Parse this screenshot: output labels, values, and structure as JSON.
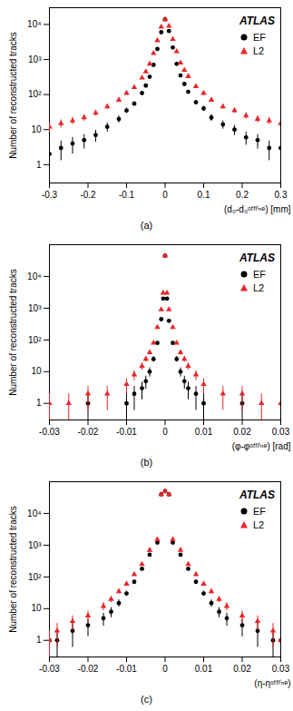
{
  "chart_data": [
    {
      "type": "scatter",
      "caption": "(a)",
      "annotation": "ATLAS",
      "x_label": "(d₀-d₀ᵒᶠᶠˡⁱⁿᵉ) [mm]",
      "y_label": "Number of reconstructed tracks",
      "log": "y",
      "legend": "top-right",
      "xlim": [
        -0.3,
        0.3
      ],
      "xticks": [
        -0.3,
        -0.2,
        -0.1,
        0,
        0.1,
        0.2,
        0.3
      ],
      "ylim": [
        0.3,
        30000
      ],
      "yticks": [
        1,
        10,
        {
          "value": 100,
          "label": "10²"
        },
        {
          "value": 1000,
          "label": "10³"
        },
        {
          "value": 10000,
          "label": "10⁴"
        }
      ],
      "x": [
        -0.3,
        -0.27,
        -0.24,
        -0.21,
        -0.18,
        -0.15,
        -0.12,
        -0.1,
        -0.08,
        -0.06,
        -0.05,
        -0.04,
        -0.03,
        -0.02,
        -0.01,
        0,
        0.01,
        0.02,
        0.03,
        0.04,
        0.05,
        0.06,
        0.08,
        0.1,
        0.12,
        0.15,
        0.18,
        0.21,
        0.24,
        0.27,
        0.3
      ],
      "series": [
        {
          "name": "EF",
          "color": "#000000",
          "marker": "circle",
          "values": [
            2,
            3,
            4,
            5,
            7,
            12,
            20,
            35,
            55,
            110,
            180,
            320,
            700,
            2000,
            6000,
            14000,
            6500,
            2200,
            750,
            350,
            200,
            120,
            60,
            40,
            22,
            14,
            10,
            6,
            5,
            3,
            3
          ],
          "errors": [
            1.4,
            1.7,
            2,
            2.2,
            2.6,
            3.5,
            4.5,
            5.9,
            7.4,
            10,
            13,
            18,
            26,
            45,
            77,
            118,
            81,
            47,
            27,
            19,
            14,
            11,
            7.7,
            6.3,
            4.7,
            3.7,
            3.2,
            2.4,
            2.2,
            1.7,
            1.7
          ]
        },
        {
          "name": "L2",
          "color": "#e8262a",
          "marker": "triangle",
          "values": [
            12,
            15,
            18,
            22,
            30,
            45,
            70,
            110,
            160,
            300,
            450,
            750,
            1500,
            3500,
            8500,
            14000,
            9000,
            3800,
            1700,
            800,
            500,
            330,
            170,
            110,
            70,
            45,
            35,
            25,
            20,
            18,
            15
          ],
          "errors": [
            3.5,
            3.9,
            4.2,
            4.7,
            5.5,
            6.7,
            8.4,
            10,
            13,
            17,
            21,
            27,
            39,
            59,
            92,
            118,
            95,
            62,
            41,
            28,
            22,
            18,
            13,
            10,
            8.4,
            6.7,
            5.9,
            5,
            4.5,
            4.2,
            3.9
          ]
        }
      ]
    },
    {
      "type": "scatter",
      "caption": "(b)",
      "annotation": "ATLAS",
      "x_label": "(φ-φᵒᶠᶠˡⁱⁿᵉ) [rad]",
      "y_label": "Number of reconstructed tracks",
      "log": "y",
      "legend": "top-right",
      "xlim": [
        -0.03,
        0.03
      ],
      "xticks": [
        -0.03,
        -0.02,
        -0.01,
        0,
        0.01,
        0.02,
        0.03
      ],
      "ylim": [
        0.3,
        100000
      ],
      "yticks": [
        1,
        10,
        {
          "value": 100,
          "label": "10²"
        },
        {
          "value": 1000,
          "label": "10³"
        },
        {
          "value": 10000,
          "label": "10⁴"
        }
      ],
      "x": [
        -0.03,
        -0.025,
        -0.02,
        -0.015,
        -0.01,
        -0.008,
        -0.006,
        -0.005,
        -0.004,
        -0.003,
        -0.002,
        -0.001,
        -0.0005,
        0,
        0.0005,
        0.001,
        0.002,
        0.003,
        0.004,
        0.005,
        0.006,
        0.008,
        0.01,
        0.015,
        0.02,
        0.025,
        0.03
      ],
      "series": [
        {
          "name": "EF",
          "color": "#000000",
          "marker": "circle",
          "values": [
            null,
            null,
            1,
            null,
            1,
            2,
            3,
            5,
            10,
            25,
            80,
            450,
            2000,
            45000,
            2000,
            400,
            80,
            25,
            10,
            5,
            3,
            2,
            1,
            null,
            1,
            null,
            null
          ],
          "errors": [
            null,
            null,
            1,
            null,
            1,
            1.4,
            1.7,
            2.2,
            3.2,
            5,
            8.9,
            21,
            45,
            212,
            45,
            20,
            8.9,
            5,
            3.2,
            2.2,
            1.7,
            1.4,
            1,
            null,
            1,
            null,
            null
          ]
        },
        {
          "name": "L2",
          "color": "#e8262a",
          "marker": "triangle",
          "values": [
            1,
            1,
            2,
            2,
            4,
            8,
            15,
            25,
            40,
            80,
            250,
            900,
            3000,
            45000,
            3000,
            900,
            250,
            80,
            40,
            25,
            15,
            8,
            4,
            2,
            2,
            1,
            1
          ],
          "errors": [
            1,
            1,
            1.4,
            1.4,
            2,
            2.8,
            3.9,
            5,
            6.3,
            8.9,
            16,
            30,
            55,
            212,
            55,
            30,
            16,
            8.9,
            6.3,
            5,
            3.9,
            2.8,
            2,
            1.4,
            1.4,
            1,
            1
          ]
        }
      ]
    },
    {
      "type": "scatter",
      "caption": "(c)",
      "annotation": "ATLAS",
      "x_label": "(η-ηᵒᶠᶠˡⁱⁿᵉ)",
      "y_label": "Number of reconstructed tracks",
      "log": "y",
      "legend": "top-right",
      "xlim": [
        -0.03,
        0.03
      ],
      "xticks": [
        -0.03,
        -0.02,
        -0.01,
        0,
        0.01,
        0.02,
        0.03
      ],
      "ylim": [
        0.3,
        100000
      ],
      "yticks": [
        1,
        10,
        {
          "value": 100,
          "label": "10²"
        },
        {
          "value": 1000,
          "label": "10³"
        },
        {
          "value": 10000,
          "label": "10⁴"
        }
      ],
      "x": [
        -0.03,
        -0.028,
        -0.024,
        -0.02,
        -0.016,
        -0.014,
        -0.012,
        -0.01,
        -0.008,
        -0.006,
        -0.004,
        -0.002,
        -0.001,
        0,
        0.001,
        0.002,
        0.004,
        0.006,
        0.008,
        0.01,
        0.012,
        0.014,
        0.016,
        0.02,
        0.024,
        0.028,
        0.03
      ],
      "series": [
        {
          "name": "EF",
          "color": "#000000",
          "marker": "circle",
          "values": [
            1,
            1,
            2,
            3,
            5,
            8,
            15,
            30,
            70,
            180,
            500,
            1200,
            40000,
            50000,
            40000,
            1200,
            500,
            180,
            70,
            30,
            15,
            8,
            5,
            3,
            2,
            1,
            1
          ],
          "errors": [
            1,
            1,
            1.4,
            1.7,
            2.2,
            2.8,
            3.9,
            5.5,
            8.4,
            13,
            22,
            35,
            200,
            224,
            200,
            35,
            22,
            13,
            8.4,
            5.5,
            3.9,
            2.8,
            2.2,
            1.7,
            1.4,
            1,
            1
          ]
        },
        {
          "name": "L2",
          "color": "#e8262a",
          "marker": "triangle",
          "values": [
            1,
            2,
            4,
            6,
            12,
            20,
            35,
            60,
            120,
            250,
            700,
            1500,
            40000,
            50000,
            40000,
            1500,
            700,
            250,
            120,
            60,
            35,
            20,
            12,
            6,
            4,
            2,
            1
          ],
          "errors": [
            1,
            1.4,
            2,
            2.4,
            3.5,
            4.5,
            5.9,
            7.7,
            11,
            16,
            26,
            39,
            200,
            224,
            200,
            39,
            26,
            16,
            11,
            7.7,
            5.9,
            4.5,
            3.5,
            2.4,
            2,
            1.4,
            1
          ]
        }
      ]
    }
  ]
}
